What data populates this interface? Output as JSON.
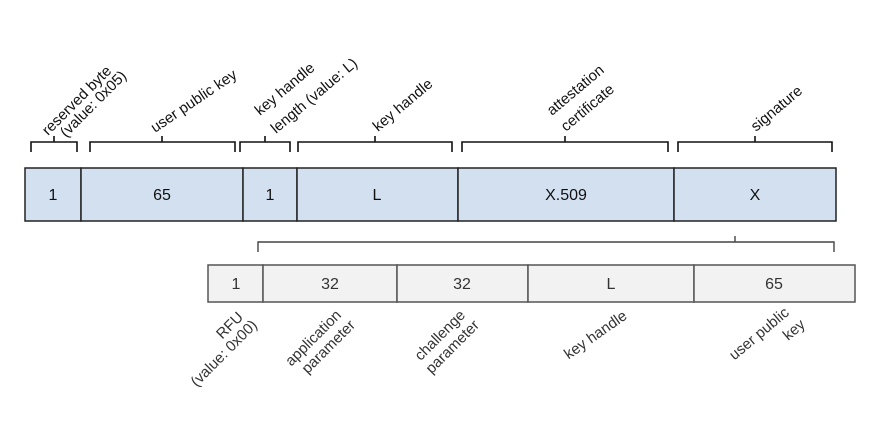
{
  "top_row": {
    "cells": [
      {
        "value": "1",
        "label": [
          "reserved byte",
          "(value: 0x05)"
        ]
      },
      {
        "value": "65",
        "label": [
          "user public key"
        ]
      },
      {
        "value": "1",
        "label": [
          "key handle",
          "length (value: L)"
        ]
      },
      {
        "value": "L",
        "label": [
          "key handle"
        ]
      },
      {
        "value": "X.509",
        "label": [
          "attestation",
          "certificate"
        ]
      },
      {
        "value": "X",
        "label": [
          "signature"
        ]
      }
    ]
  },
  "bottom_row": {
    "cells": [
      {
        "value": "1",
        "label": [
          "RFU",
          "(value: 0x00)"
        ]
      },
      {
        "value": "32",
        "label": [
          "application",
          "parameter"
        ]
      },
      {
        "value": "32",
        "label": [
          "challenge",
          "parameter"
        ]
      },
      {
        "value": "L",
        "label": [
          "key handle"
        ]
      },
      {
        "value": "65",
        "label": [
          "user public",
          "key"
        ]
      }
    ]
  },
  "colors": {
    "top_fill": "#d3e0f0",
    "bottom_fill": "#f2f2f2"
  }
}
